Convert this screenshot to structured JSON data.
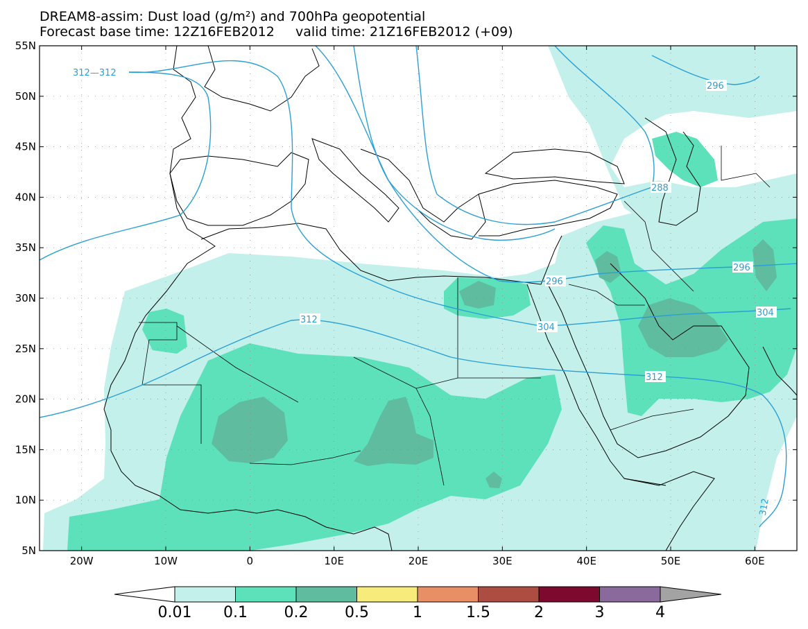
{
  "header": {
    "title_line1": "DREAM8-assim: Dust load (g/m²) and 700hPa geopotential",
    "title_line2": "Forecast base time: 12Z16FEB2012     valid time: 21Z16FEB2012 (+09)"
  },
  "map": {
    "lon_labels": [
      "20W",
      "10W",
      "0",
      "10E",
      "20E",
      "30E",
      "40E",
      "50E",
      "60E"
    ],
    "lat_labels": [
      "55N",
      "50N",
      "45N",
      "40N",
      "35N",
      "30N",
      "25N",
      "20N",
      "15N",
      "10N",
      "5N"
    ],
    "lon_values": [
      -20,
      -10,
      0,
      10,
      20,
      30,
      40,
      50,
      60
    ],
    "lat_values": [
      55,
      50,
      45,
      40,
      35,
      30,
      25,
      20,
      15,
      10,
      5
    ],
    "lon_range": [
      -25,
      65
    ],
    "lat_range": [
      5,
      55
    ],
    "gridlines": true,
    "contour_labels": [
      "312—312",
      "312",
      "296",
      "288",
      "296",
      "296",
      "304",
      "304",
      "312",
      "312"
    ]
  },
  "colorbar": {
    "levels": [
      "0.01",
      "0.1",
      "0.2",
      "0.5",
      "1",
      "1.5",
      "2",
      "3",
      "4"
    ],
    "colors": [
      "#c3f0ea",
      "#5ce1bb",
      "#5fbc9f",
      "#f7ec7b",
      "#e98f66",
      "#ad4c40",
      "#7d0a2e",
      "#8a6a9c",
      "#a3a3a3"
    ]
  },
  "colors": {
    "dust_0_01": "#c3f0ea",
    "dust_0_1": "#5ce1bb",
    "dust_0_2": "#5fbc9f",
    "contour": "#2a9fd6",
    "coastline": "#000000"
  }
}
